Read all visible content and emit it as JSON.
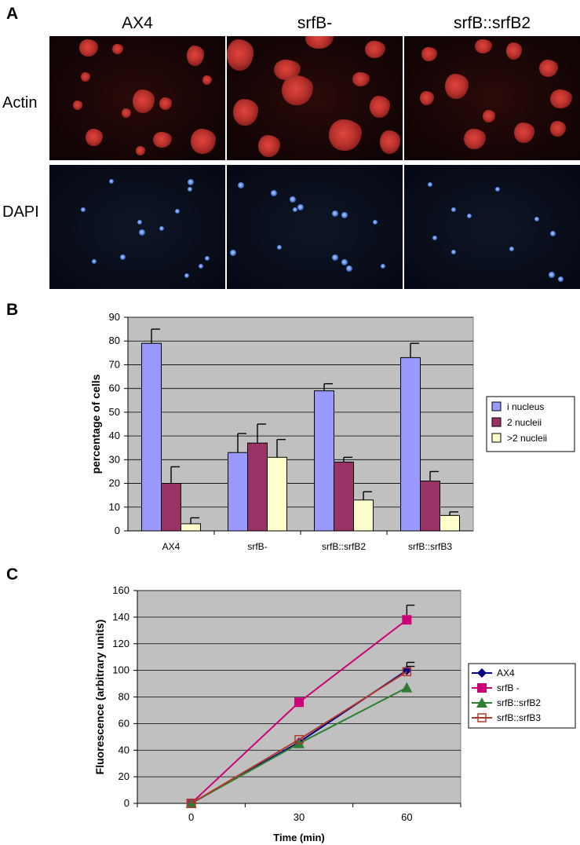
{
  "panelA": {
    "letter": "A",
    "columns": [
      "AX4",
      "srfB-",
      "srfB::srfB2"
    ],
    "rows": [
      "Actin",
      "DAPI"
    ]
  },
  "panelB": {
    "letter": "B"
  },
  "panelC": {
    "letter": "C"
  },
  "chart_data": [
    {
      "type": "bar",
      "categories": [
        "AX4",
        "srfB-",
        "srfB::srfB2",
        "srfB::srfB3"
      ],
      "series": [
        {
          "name": "i nucleus",
          "values": [
            79,
            33,
            59,
            73
          ],
          "errors": [
            6,
            8,
            3,
            6
          ],
          "color": "#9999ff"
        },
        {
          "name": "2 nucleii",
          "values": [
            20,
            37,
            29,
            21
          ],
          "errors": [
            7,
            8,
            2,
            4
          ],
          "color": "#993366"
        },
        {
          "name": ">2 nucleii",
          "values": [
            3,
            31,
            13,
            6.5
          ],
          "errors": [
            2.5,
            7.5,
            3.5,
            1.5
          ],
          "color": "#ffffcc"
        }
      ],
      "title": "",
      "xlabel": "",
      "ylabel": "percentage of cells",
      "ylim": [
        0,
        90
      ],
      "yticks": [
        0,
        10,
        20,
        30,
        40,
        50,
        60,
        70,
        80,
        90
      ],
      "grid": true,
      "plot_background": "#c0c0c0",
      "legend": "right"
    },
    {
      "type": "line",
      "x": [
        0,
        30,
        60
      ],
      "series": [
        {
          "name": "AX4",
          "values": [
            0,
            46,
            100
          ],
          "error_at_end": 6,
          "color": "#000080",
          "marker": "diamond"
        },
        {
          "name": "srfB -",
          "values": [
            0,
            76,
            138
          ],
          "error_at_end": 11,
          "color": "#cc0077",
          "marker": "square"
        },
        {
          "name": "srfB::srfB2",
          "values": [
            0,
            45,
            87
          ],
          "error_at_end": 0,
          "color": "#2e7d32",
          "marker": "triangle"
        },
        {
          "name": "srfB::srfB3",
          "values": [
            0,
            48,
            99
          ],
          "error_at_end": 4,
          "color": "#b03a2e",
          "marker": "open-square"
        }
      ],
      "title": "",
      "xlabel": "Time (min)",
      "ylabel": "Fluorescence (arbitrary units)",
      "xticks": [
        0,
        30,
        60
      ],
      "ylim": [
        0,
        160
      ],
      "yticks": [
        0,
        20,
        40,
        60,
        80,
        100,
        120,
        140,
        160
      ],
      "grid": true,
      "plot_background": "#c0c0c0",
      "legend": "right"
    }
  ]
}
